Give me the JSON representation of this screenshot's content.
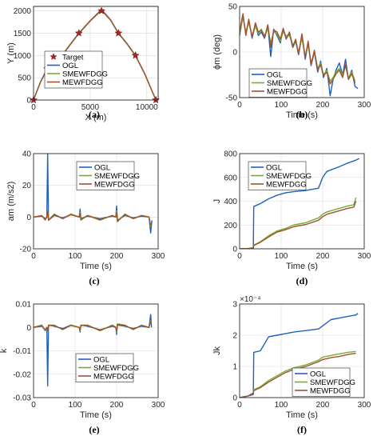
{
  "colors": {
    "OGL": "#1f5fbf",
    "SMEWFDGG": "#77ac30",
    "MEWFDGG": "#a0522d",
    "Target": "#b22222"
  },
  "chart_data": [
    {
      "id": "a",
      "type": "line",
      "caption": "(a)",
      "xlabel": "X (m)",
      "ylabel": "Y (m)",
      "xlim": [
        0,
        11000
      ],
      "ylim": [
        0,
        2100
      ],
      "xticks": [
        0,
        5000,
        10000
      ],
      "yticks": [
        0,
        500,
        1000,
        1500,
        2000
      ],
      "legend": [
        "Target",
        "OGL",
        "SMEWFDGG",
        "MEWFDGG"
      ],
      "targets": {
        "name": "Target",
        "x": [
          0,
          1200,
          2500,
          4000,
          6000,
          7500,
          9000,
          10800
        ],
        "y": [
          0,
          700,
          1000,
          1500,
          2000,
          1500,
          1000,
          0
        ]
      },
      "series": [
        {
          "name": "OGL",
          "x": [
            0,
            600,
            1200,
            2000,
            2500,
            3300,
            4000,
            5000,
            6000,
            6800,
            7500,
            8300,
            9000,
            9800,
            10800
          ],
          "y": [
            0,
            400,
            700,
            900,
            1000,
            1270,
            1500,
            1780,
            2030,
            1800,
            1500,
            1250,
            1000,
            600,
            0
          ]
        },
        {
          "name": "SMEWFDGG",
          "x": [
            0,
            600,
            1200,
            2000,
            2500,
            3300,
            4000,
            5000,
            6000,
            6800,
            7500,
            8300,
            9000,
            9800,
            10800
          ],
          "y": [
            0,
            390,
            690,
            890,
            990,
            1260,
            1490,
            1770,
            2010,
            1790,
            1490,
            1240,
            990,
            590,
            0
          ]
        },
        {
          "name": "MEWFDGG",
          "x": [
            0,
            600,
            1200,
            2000,
            2500,
            3300,
            4000,
            5000,
            6000,
            6800,
            7500,
            8300,
            9000,
            9800,
            10800
          ],
          "y": [
            0,
            395,
            695,
            895,
            995,
            1265,
            1495,
            1775,
            2020,
            1795,
            1495,
            1245,
            995,
            595,
            0
          ]
        }
      ]
    },
    {
      "id": "b",
      "type": "line",
      "caption": "(b)",
      "xlabel": "Time (s)",
      "ylabel": "ϕm (deg)",
      "xlim": [
        0,
        300
      ],
      "ylim": [
        -50,
        50
      ],
      "xticks": [
        0,
        100,
        200,
        300
      ],
      "yticks": [
        -50,
        0,
        50
      ],
      "legend": [
        "OGL",
        "SMEWFDGG",
        "MEWFDGG"
      ],
      "series": [
        {
          "name": "OGL",
          "x": [
            0,
            8,
            15,
            22,
            30,
            38,
            45,
            52,
            60,
            68,
            75,
            82,
            90,
            98,
            105,
            112,
            120,
            128,
            135,
            142,
            150,
            158,
            165,
            172,
            180,
            188,
            195,
            202,
            210,
            218,
            225,
            232,
            240,
            248,
            255,
            262,
            270,
            278,
            285
          ],
          "y": [
            18,
            40,
            20,
            35,
            15,
            30,
            18,
            22,
            15,
            28,
            -5,
            25,
            18,
            10,
            25,
            15,
            20,
            5,
            12,
            -3,
            18,
            -8,
            10,
            -15,
            0,
            -22,
            -10,
            -28,
            -18,
            -48,
            -30,
            -20,
            -12,
            -25,
            -8,
            -30,
            -20,
            -38,
            -40
          ]
        },
        {
          "name": "SMEWFDGG",
          "x": [
            0,
            8,
            15,
            22,
            30,
            38,
            45,
            52,
            60,
            68,
            75,
            82,
            90,
            98,
            105,
            112,
            120,
            128,
            135,
            142,
            150,
            158,
            165,
            172,
            180,
            188,
            195,
            202,
            210,
            218,
            225,
            232,
            240,
            248,
            255,
            262,
            270,
            278
          ],
          "y": [
            20,
            38,
            22,
            32,
            18,
            28,
            20,
            25,
            18,
            25,
            10,
            22,
            20,
            12,
            22,
            18,
            18,
            8,
            10,
            0,
            15,
            -5,
            8,
            -12,
            0,
            -18,
            -12,
            -25,
            -20,
            -32,
            -28,
            -22,
            -18,
            -25,
            -15,
            -28,
            -22,
            -32
          ]
        },
        {
          "name": "MEWFDGG",
          "x": [
            0,
            8,
            15,
            22,
            30,
            38,
            45,
            52,
            60,
            68,
            75,
            82,
            90,
            98,
            105,
            112,
            120,
            128,
            135,
            142,
            150,
            158,
            165,
            172,
            180,
            188,
            195,
            202,
            210,
            218,
            225,
            232,
            240,
            248,
            255,
            262,
            270,
            278
          ],
          "y": [
            22,
            42,
            18,
            36,
            16,
            32,
            22,
            24,
            16,
            30,
            5,
            24,
            22,
            14,
            26,
            14,
            22,
            6,
            14,
            -2,
            20,
            -6,
            12,
            -14,
            2,
            -20,
            -14,
            -26,
            -22,
            -35,
            -30,
            -24,
            -20,
            -28,
            -14,
            -30,
            -24,
            -34
          ]
        }
      ]
    },
    {
      "id": "c",
      "type": "line",
      "caption": "(c)",
      "xlabel": "Time (s)",
      "ylabel": "am (m/s2)",
      "xlim": [
        0,
        300
      ],
      "ylim": [
        -20,
        40
      ],
      "xticks": [
        0,
        100,
        200,
        300
      ],
      "yticks": [
        -20,
        0,
        20,
        40
      ],
      "legend": [
        "OGL",
        "SMEWFDGG",
        "MEWFDGG"
      ],
      "series": [
        {
          "name": "OGL",
          "x": [
            0,
            20,
            28,
            32,
            34,
            36,
            50,
            70,
            90,
            110,
            112,
            114,
            130,
            160,
            190,
            198,
            200,
            202,
            220,
            240,
            260,
            278,
            282,
            285
          ],
          "y": [
            0,
            0.5,
            -1,
            0,
            40,
            -2,
            1,
            -0.5,
            1.5,
            0,
            5,
            -1,
            0.5,
            -1,
            0.5,
            0,
            7,
            -2,
            1,
            -0.5,
            0.5,
            0,
            -10,
            -2
          ]
        },
        {
          "name": "SMEWFDGG",
          "x": [
            0,
            20,
            28,
            32,
            34,
            36,
            50,
            70,
            90,
            110,
            112,
            114,
            130,
            160,
            190,
            198,
            200,
            202,
            220,
            240,
            260,
            278,
            282
          ],
          "y": [
            0,
            1,
            -2,
            0,
            5,
            -2,
            2,
            -1,
            2,
            0,
            3,
            -2,
            1,
            -2,
            1,
            0,
            4,
            -3,
            2,
            -1,
            1,
            0,
            -6
          ]
        },
        {
          "name": "MEWFDGG",
          "x": [
            0,
            20,
            28,
            32,
            34,
            36,
            50,
            70,
            90,
            110,
            112,
            114,
            130,
            160,
            190,
            198,
            200,
            202,
            220,
            240,
            260,
            278,
            282
          ],
          "y": [
            0,
            0.8,
            -1.5,
            0,
            4,
            -2,
            1.5,
            -1,
            1.5,
            0,
            2.5,
            -1.5,
            1,
            -1.5,
            1,
            0,
            3,
            -2.5,
            1.5,
            -1,
            1,
            0,
            -5
          ]
        }
      ]
    },
    {
      "id": "d",
      "type": "line",
      "caption": "(d)",
      "xlabel": "Time (s)",
      "ylabel": "J",
      "xlim": [
        0,
        300
      ],
      "ylim": [
        0,
        800
      ],
      "xticks": [
        0,
        100,
        200,
        300
      ],
      "yticks": [
        0,
        200,
        400,
        600,
        800
      ],
      "legend": [
        "OGL",
        "SMEWFDGG",
        "MEWFDGG"
      ],
      "series": [
        {
          "name": "OGL",
          "x": [
            0,
            20,
            33,
            34,
            50,
            70,
            90,
            110,
            130,
            160,
            190,
            200,
            210,
            240,
            260,
            280,
            288
          ],
          "y": [
            0,
            2,
            10,
            355,
            380,
            420,
            450,
            470,
            480,
            490,
            510,
            600,
            650,
            690,
            720,
            745,
            760
          ]
        },
        {
          "name": "SMEWFDGG",
          "x": [
            0,
            20,
            33,
            34,
            50,
            70,
            90,
            110,
            130,
            160,
            190,
            200,
            210,
            240,
            260,
            275,
            280
          ],
          "y": [
            0,
            2,
            5,
            30,
            60,
            110,
            150,
            170,
            200,
            220,
            260,
            290,
            310,
            340,
            360,
            370,
            430
          ]
        },
        {
          "name": "MEWFDGG",
          "x": [
            0,
            20,
            33,
            34,
            50,
            70,
            90,
            110,
            130,
            160,
            190,
            200,
            210,
            240,
            260,
            275,
            280
          ],
          "y": [
            0,
            2,
            5,
            28,
            55,
            100,
            140,
            160,
            185,
            205,
            240,
            270,
            290,
            320,
            340,
            350,
            400
          ]
        }
      ]
    },
    {
      "id": "e",
      "type": "line",
      "caption": "(e)",
      "xlabel": "Time (s)",
      "ylabel": "k",
      "xlim": [
        0,
        300
      ],
      "ylim": [
        -0.03,
        0.01
      ],
      "xticks": [
        0,
        100,
        200,
        300
      ],
      "yticks": [
        -0.03,
        -0.02,
        -0.01,
        0,
        0.01
      ],
      "yticklabels": [
        "-0.03",
        "-0.02",
        "-0.01",
        "0",
        "0.01"
      ],
      "legend": [
        "OGL",
        "SMEWFDGG",
        "MEWFDGG"
      ],
      "series": [
        {
          "name": "OGL",
          "x": [
            0,
            20,
            28,
            32,
            34,
            36,
            50,
            70,
            90,
            110,
            112,
            114,
            130,
            160,
            190,
            198,
            200,
            202,
            220,
            240,
            260,
            278,
            282,
            284
          ],
          "y": [
            0,
            0.0005,
            -0.001,
            0,
            -0.025,
            0.001,
            0.0005,
            -0.0005,
            0.001,
            0,
            -0.002,
            0.001,
            0.0005,
            -0.001,
            0.0005,
            0,
            -0.003,
            0.001,
            0.0005,
            -0.0005,
            0.0005,
            0,
            0.0055,
            0
          ]
        },
        {
          "name": "SMEWFDGG",
          "x": [
            0,
            20,
            28,
            32,
            34,
            36,
            50,
            70,
            90,
            110,
            112,
            114,
            130,
            160,
            190,
            198,
            200,
            202,
            220,
            240,
            260,
            278,
            282
          ],
          "y": [
            0,
            0.001,
            -0.0015,
            0,
            -0.002,
            0.001,
            0.001,
            -0.001,
            0.001,
            0,
            -0.0015,
            0.001,
            0.001,
            -0.0015,
            0.001,
            0,
            -0.002,
            0.0015,
            0.001,
            -0.001,
            0.001,
            0,
            0.003
          ]
        },
        {
          "name": "MEWFDGG",
          "x": [
            0,
            20,
            28,
            32,
            34,
            36,
            50,
            70,
            90,
            110,
            112,
            114,
            130,
            160,
            190,
            198,
            200,
            202,
            220,
            240,
            260,
            278,
            282
          ],
          "y": [
            0,
            0.0008,
            -0.0012,
            0,
            -0.0015,
            0.0008,
            0.0008,
            -0.0008,
            0.0008,
            0,
            -0.0012,
            0.0008,
            0.0008,
            -0.0012,
            0.0008,
            0,
            -0.0015,
            0.0012,
            0.0008,
            -0.0008,
            0.0008,
            0,
            0.0025
          ]
        }
      ]
    },
    {
      "id": "f",
      "type": "line",
      "caption": "(f)",
      "xlabel": "Time (s)",
      "ylabel": "Jk",
      "exponent": "×10⁻⁴",
      "xlim": [
        0,
        300
      ],
      "ylim": [
        0,
        3
      ],
      "xticks": [
        0,
        100,
        200,
        300
      ],
      "yticks": [
        0,
        1,
        2,
        3
      ],
      "legend": [
        "OGL",
        "SMEWFDGG",
        "MEWFDGG"
      ],
      "series": [
        {
          "name": "OGL",
          "x": [
            0,
            20,
            33,
            34,
            50,
            70,
            90,
            110,
            130,
            160,
            190,
            200,
            220,
            240,
            260,
            280,
            285
          ],
          "y": [
            0,
            0.05,
            0.1,
            1.45,
            1.5,
            1.95,
            2.0,
            2.05,
            2.1,
            2.15,
            2.2,
            2.3,
            2.5,
            2.55,
            2.6,
            2.65,
            2.7
          ]
        },
        {
          "name": "SMEWFDGG",
          "x": [
            0,
            20,
            33,
            34,
            50,
            70,
            90,
            110,
            130,
            160,
            190,
            200,
            220,
            240,
            260,
            280
          ],
          "y": [
            0,
            0.05,
            0.15,
            0.25,
            0.35,
            0.55,
            0.7,
            0.85,
            0.95,
            1.05,
            1.2,
            1.3,
            1.35,
            1.4,
            1.45,
            1.48
          ]
        },
        {
          "name": "MEWFDGG",
          "x": [
            0,
            20,
            33,
            34,
            50,
            70,
            90,
            110,
            130,
            160,
            190,
            200,
            220,
            240,
            260,
            280
          ],
          "y": [
            0,
            0.05,
            0.15,
            0.22,
            0.32,
            0.5,
            0.65,
            0.8,
            0.9,
            1.0,
            1.15,
            1.22,
            1.28,
            1.32,
            1.38,
            1.42
          ]
        }
      ]
    }
  ]
}
